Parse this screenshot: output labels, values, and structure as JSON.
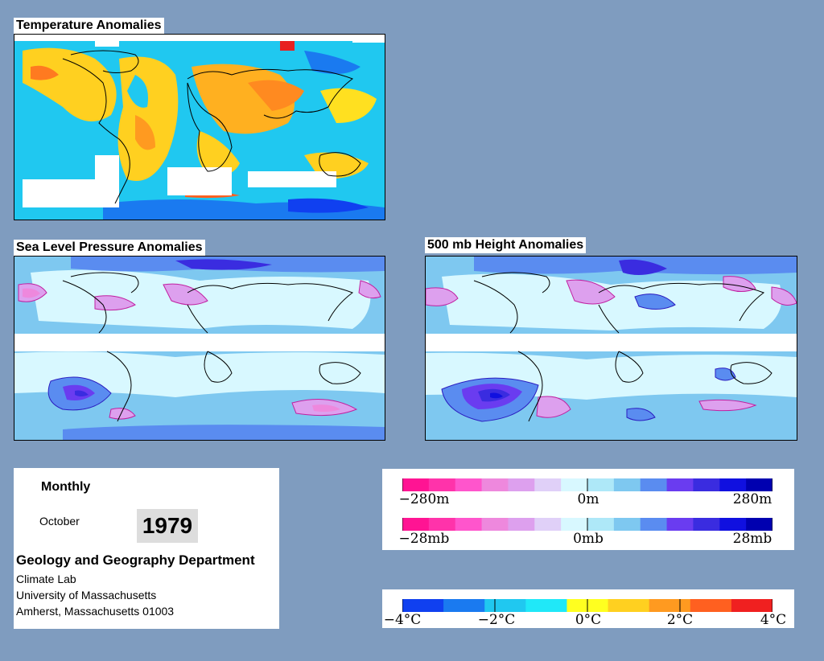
{
  "panels": {
    "temperature": {
      "title": "Temperature Anomalies"
    },
    "slp": {
      "title": "Sea Level Pressure Anomalies"
    },
    "height": {
      "title": "500 mb Height Anomalies"
    }
  },
  "info": {
    "period": "Monthly",
    "month": "October",
    "year": "1979",
    "department": "Geology and Geography Department",
    "lines": [
      "Climate Lab",
      "University of Massachusetts",
      "Amherst, Massachusetts 01003"
    ]
  },
  "legends": {
    "height": {
      "labels": [
        "−280m",
        "0m",
        "280m"
      ]
    },
    "pressure": {
      "labels": [
        "−28mb",
        "0mb",
        "28mb"
      ]
    },
    "temperature": {
      "labels": [
        "−4°C",
        "−2°C",
        "0°C",
        "2°C",
        "4°C"
      ]
    }
  },
  "colors": {
    "background": "#7f9cbf",
    "anomaly_scale": [
      "#ff1493",
      "#ff33aa",
      "#ff55cc",
      "#ee88dd",
      "#dda0ee",
      "#e0d0f8",
      "#d8f8ff",
      "#aee8f8",
      "#7ec8f0",
      "#5a8cf0",
      "#6a3cf0",
      "#3a2ce0",
      "#1010e0",
      "#0000b0"
    ],
    "temperature_scale": [
      "#1040f0",
      "#1a7af0",
      "#20c8f0",
      "#20e8f8",
      "#ffff20",
      "#ffd020",
      "#ff9a20",
      "#ff6020",
      "#f02020"
    ]
  }
}
